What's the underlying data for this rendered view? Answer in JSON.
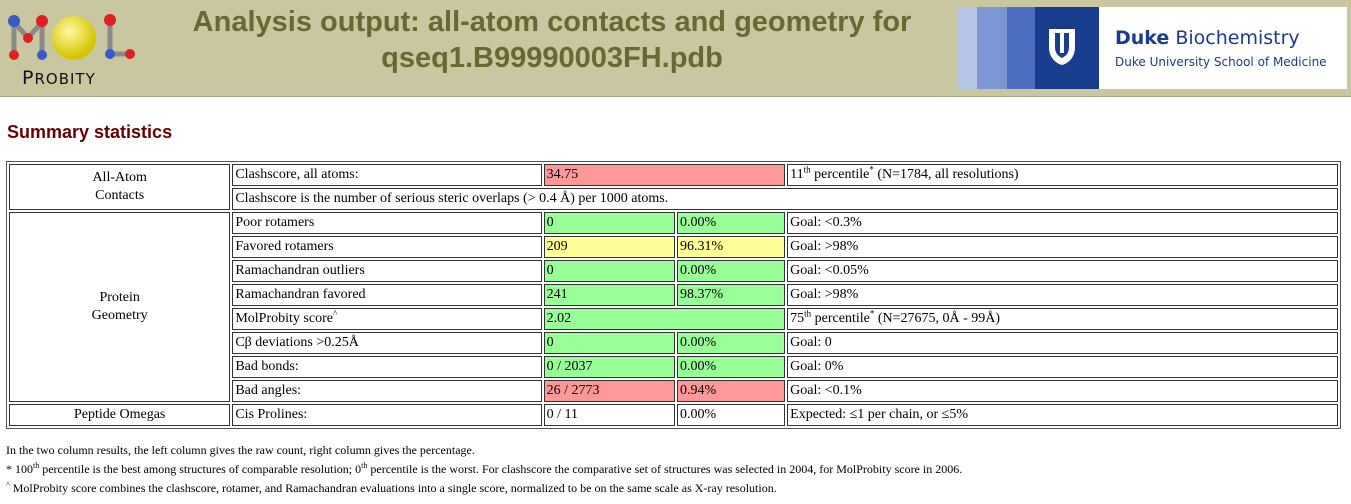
{
  "header": {
    "logo_text_first": "P",
    "logo_text_rest": "ROBITY",
    "title_line1": "Analysis output: all-atom contacts and geometry for",
    "title_line2": "qseq1.B99990003FH.pdb",
    "duke_strong": "Duke",
    "duke_rest": " Biochemistry",
    "duke_sub": "Duke University School of Medicine"
  },
  "summary": {
    "title": "Summary statistics",
    "groups": {
      "contacts": [
        "All-Atom",
        "Contacts"
      ],
      "protein": [
        "Protein",
        "Geometry"
      ],
      "omegas": "Peptide Omegas"
    },
    "clash": {
      "label": "Clashscore, all atoms:",
      "value": "34.75",
      "pct_num": "11",
      "pct_sup": "th",
      "pct_word": " percentile",
      "star": "*",
      "pct_tail": " (N=1784, all resolutions)",
      "explain": "Clashscore is the number of serious steric overlaps (> 0.4 Å) per 1000 atoms."
    },
    "rows": [
      {
        "label": "Poor rotamers",
        "count": "0",
        "pct": "0.00%",
        "goal": "Goal: <0.3%"
      },
      {
        "label": "Favored rotamers",
        "count": "209",
        "pct": "96.31%",
        "goal": "Goal: >98%"
      },
      {
        "label": "Ramachandran outliers",
        "count": "0",
        "pct": "0.00%",
        "goal": "Goal: <0.05%"
      },
      {
        "label": "Ramachandran favored",
        "count": "241",
        "pct": "98.37%",
        "goal": "Goal: >98%"
      }
    ],
    "molprobity": {
      "label": "MolProbity score",
      "caret": "^",
      "value": "2.02",
      "pct_num": "75",
      "pct_sup": "th",
      "pct_word": " percentile",
      "star": "*",
      "pct_tail": " (N=27675, 0Å - 99Å)"
    },
    "rows2": [
      {
        "label": "Cβ deviations >0.25Å",
        "count": "0",
        "pct": "0.00%",
        "goal": "Goal: 0"
      },
      {
        "label": "Bad bonds:",
        "count": "0 / 2037",
        "pct": "0.00%",
        "goal": "Goal: 0%"
      },
      {
        "label": "Bad angles:",
        "count": "26 / 2773",
        "pct": "0.94%",
        "goal": "Goal: <0.1%"
      }
    ],
    "cis": {
      "label": "Cis Prolines:",
      "count": "0 / 11",
      "pct": "0.00%",
      "goal": "Expected: ≤1 per chain, or ≤5%"
    }
  },
  "notes": {
    "line1": "In the two column results, the left column gives the raw count, right column gives the percentage.",
    "line2_star": "* 100",
    "line2_sup1": "th",
    "line2_mid": " percentile is the best among structures of comparable resolution; 0",
    "line2_sup2": "th",
    "line2_tail": " percentile is the worst. For clashscore the comparative set of structures was selected in 2004, for MolProbity score in 2006.",
    "line3_caret": "^",
    "line3": " MolProbity score combines the clashscore, rotamer, and Ramachandran evaluations into a single score, normalized to be on the same scale as X-ray resolution."
  },
  "colors": {
    "bad": "#ff9999",
    "good": "#99ff99",
    "warn": "#ffff99",
    "header": "#c8c7a0",
    "title": "#6b6734",
    "duke_blue": "#173d8c"
  }
}
